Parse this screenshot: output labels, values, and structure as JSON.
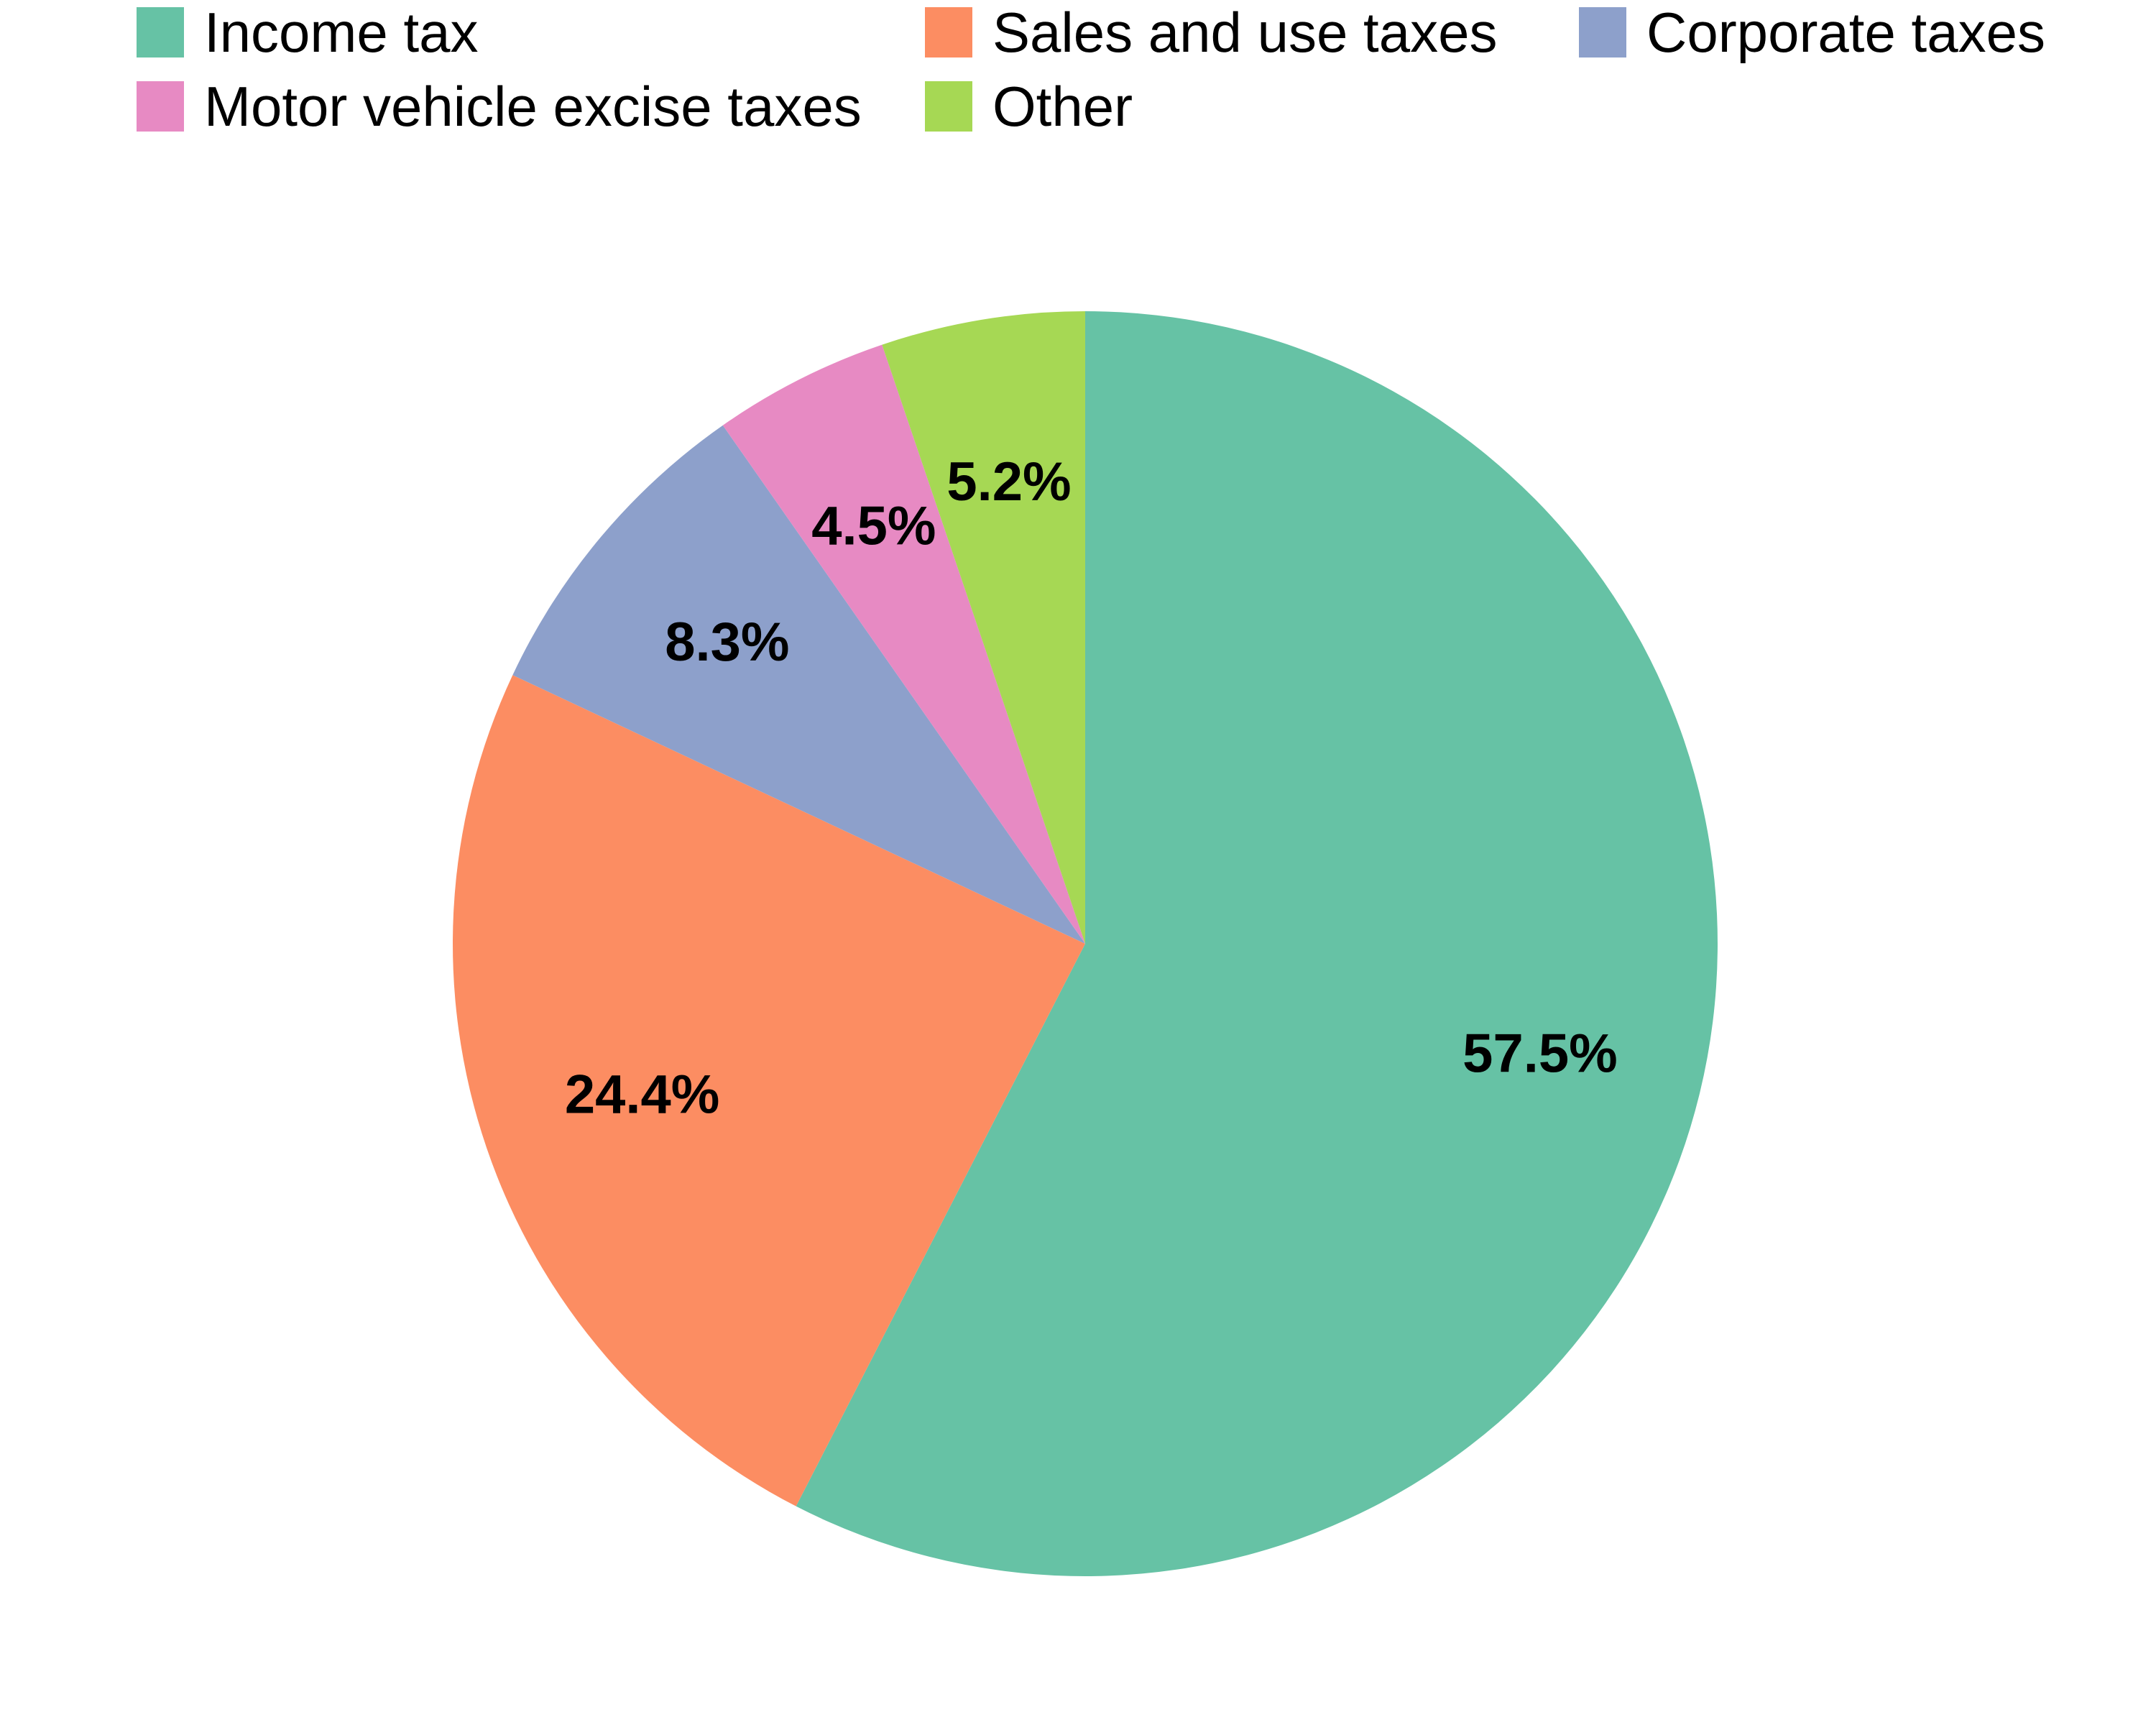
{
  "chart_data": {
    "type": "pie",
    "start_angle_deg": 0,
    "direction": "clockwise",
    "legend_position": "top",
    "categories": [
      "Income tax",
      "Sales and use taxes",
      "Corporate taxes",
      "Motor vehicle excise taxes",
      "Other"
    ],
    "values": [
      57.5,
      24.4,
      8.3,
      4.5,
      5.2
    ],
    "labels": [
      "57.5%",
      "24.4%",
      "8.3%",
      "4.5%",
      "5.2%"
    ],
    "colors": [
      "#66c2a5",
      "#fc8d62",
      "#8da0cb",
      "#e78ac3",
      "#a6d854"
    ]
  }
}
